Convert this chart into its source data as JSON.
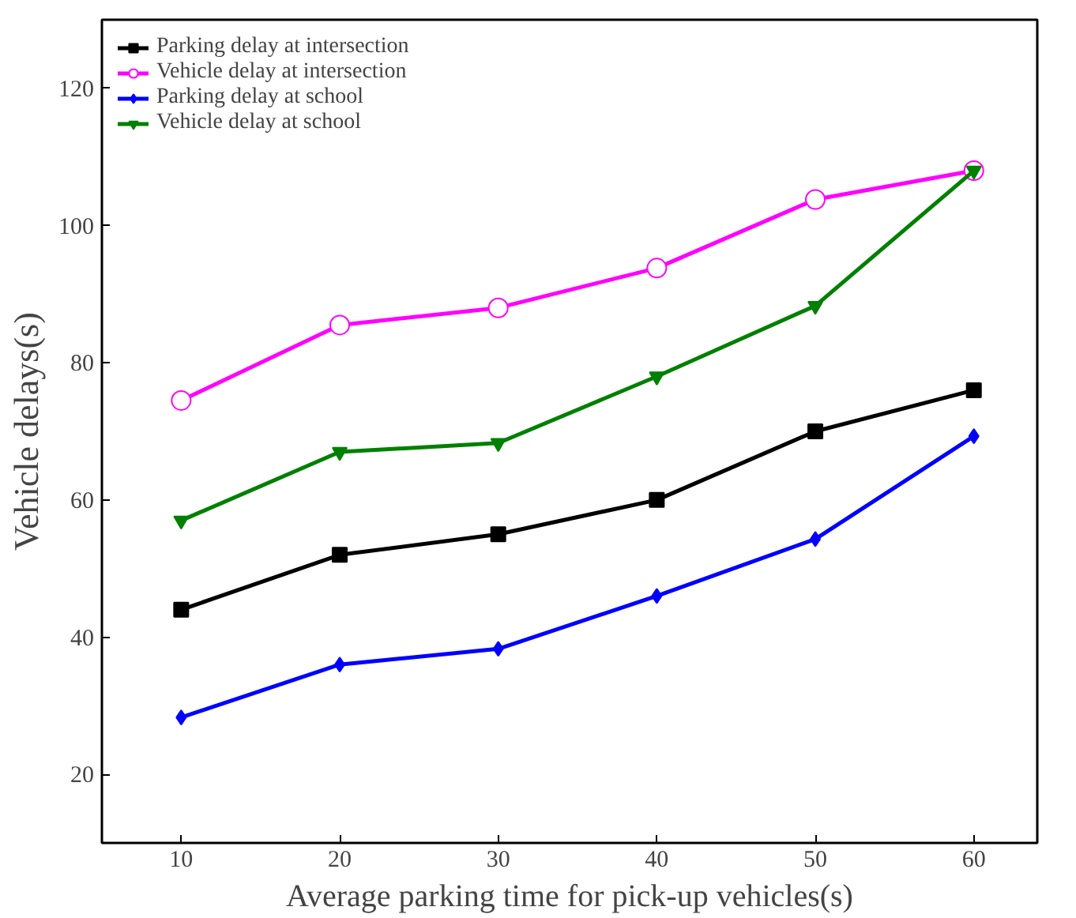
{
  "chart_data": {
    "type": "line",
    "xlabel": "Average parking time for pick-up vehicles(s)",
    "ylabel": "Vehicle delays(s)",
    "x": [
      10,
      20,
      30,
      40,
      50,
      60
    ],
    "series": [
      {
        "name": "Parking delay at intersection",
        "color": "#000000",
        "marker": "square",
        "values": [
          44,
          52,
          55,
          60,
          70,
          76
        ]
      },
      {
        "name": "Vehicle delay at intersection",
        "color": "#ff00ff",
        "marker": "circle",
        "values": [
          74.5,
          85.5,
          88,
          93.8,
          103.8,
          108
        ]
      },
      {
        "name": "Parking delay at school",
        "color": "#0000ff",
        "marker": "diamond",
        "values": [
          28.3,
          36,
          38.3,
          46,
          54.3,
          69.3
        ]
      },
      {
        "name": "Vehicle delay at school",
        "color": "#008000",
        "marker": "triangle",
        "values": [
          57,
          67,
          68.3,
          78,
          88.3,
          108
        ]
      }
    ],
    "xlim": [
      5,
      64
    ],
    "ylim": [
      10,
      130
    ],
    "xticks": [
      10,
      20,
      30,
      40,
      50,
      60
    ],
    "yticks": [
      20,
      40,
      60,
      80,
      100,
      120
    ],
    "grid": false,
    "legend": "top left"
  }
}
